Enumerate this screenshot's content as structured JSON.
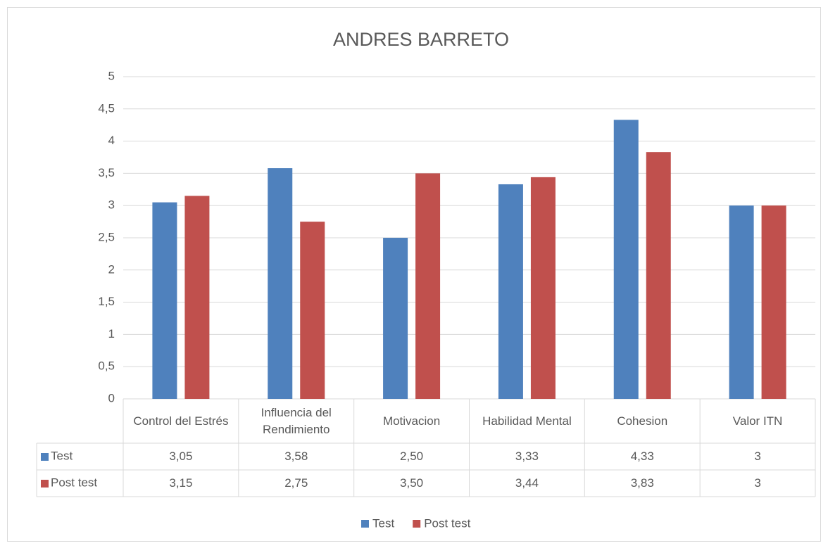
{
  "chart_data": {
    "type": "bar",
    "title": "ANDRES BARRETO",
    "categories": [
      "Control del Estrés",
      "Influencia del Rendimiento",
      "Motivacion",
      "Habilidad Mental",
      "Cohesion",
      "Valor ITN"
    ],
    "series": [
      {
        "name": "Test",
        "color": "#4f81bd",
        "values": [
          3.05,
          3.58,
          2.5,
          3.33,
          4.33,
          3
        ],
        "value_labels": [
          "3,05",
          "3,58",
          "2,50",
          "3,33",
          "4,33",
          "3"
        ]
      },
      {
        "name": "Post test",
        "color": "#c0504d",
        "values": [
          3.15,
          2.75,
          3.5,
          3.44,
          3.83,
          3
        ],
        "value_labels": [
          "3,15",
          "2,75",
          "3,50",
          "3,44",
          "3,83",
          "3"
        ]
      }
    ],
    "ylim": [
      0,
      5
    ],
    "yticks": [
      0,
      {
        "value": 0.5,
        "label": "0,5"
      },
      1,
      {
        "value": 1.5,
        "label": "1,5"
      },
      2,
      {
        "value": 2.5,
        "label": "2,5"
      },
      3,
      {
        "value": 3.5,
        "label": "3,5"
      },
      4,
      {
        "value": 4.5,
        "label": "4,5"
      },
      5
    ],
    "grid": true,
    "legend": "bottom",
    "data_table": true
  }
}
